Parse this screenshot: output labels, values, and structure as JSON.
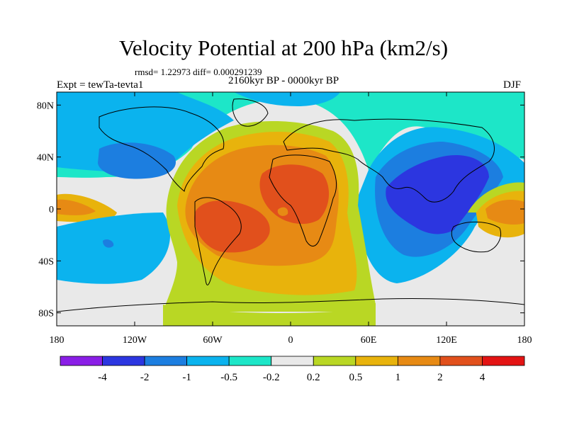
{
  "header": {
    "title": "Velocity Potential at 200 hPa (km2/s)",
    "stats": "rmsd= 1.22973 diff= 0.000291239",
    "experiment": "Expt = tewTa-tevta1",
    "period": "2160kyr BP - 0000kyr BP",
    "season": "DJF"
  },
  "axes": {
    "y_ticks": [
      {
        "value": 80,
        "label": "80N"
      },
      {
        "value": 40,
        "label": "40N"
      },
      {
        "value": 0,
        "label": "0"
      },
      {
        "value": -40,
        "label": "40S"
      },
      {
        "value": -80,
        "label": "80S"
      }
    ],
    "x_ticks": [
      {
        "value": -180,
        "label": "180"
      },
      {
        "value": -120,
        "label": "120W"
      },
      {
        "value": -60,
        "label": "60W"
      },
      {
        "value": 0,
        "label": "0"
      },
      {
        "value": 60,
        "label": "60E"
      },
      {
        "value": 120,
        "label": "120E"
      },
      {
        "value": 180,
        "label": "180"
      }
    ],
    "lon_range": [
      -180,
      180
    ],
    "lat_range": [
      -90,
      90
    ]
  },
  "colorbar": {
    "labels": [
      "-4",
      "-2",
      "-1",
      "-0.5",
      "-0.2",
      "0.2",
      "0.5",
      "1",
      "2",
      "4"
    ],
    "colors": [
      "#8a1ee6",
      "#2c36e0",
      "#1c7ee0",
      "#0bb3ee",
      "#1de6c8",
      "#e9e9e9",
      "#b9d724",
      "#e8b30c",
      "#e78a14",
      "#e1501c",
      "#e31414"
    ]
  },
  "chart_data": {
    "type": "heatmap",
    "title": "Velocity Potential at 200 hPa (km2/s)",
    "units": "km2/s",
    "x_range": [
      -180,
      180
    ],
    "y_range": [
      -90,
      90
    ],
    "levels": [
      -4,
      -2,
      -1,
      -0.5,
      -0.2,
      0.2,
      0.5,
      1,
      2,
      4
    ],
    "regions": [
      {
        "name": "positive anomaly (Atlantic/Africa/South America)",
        "center": [
          -40,
          0
        ],
        "peak": 2.5
      },
      {
        "name": "negative anomaly (Indian Ocean/Maritime Continent)",
        "center": [
          110,
          15
        ],
        "peak": -2.5
      },
      {
        "name": "positive anomaly (western Pacific)",
        "center": [
          160,
          0
        ],
        "peak": 1.5
      },
      {
        "name": "negative anomaly (North Pacific)",
        "center": [
          -140,
          35
        ],
        "peak": -1.0
      }
    ]
  }
}
